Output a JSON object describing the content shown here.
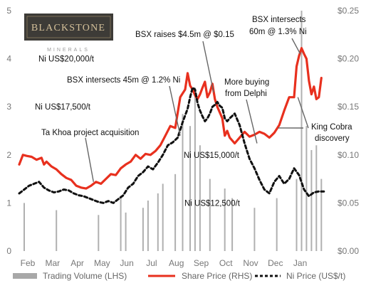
{
  "chart_data": {
    "type": "line",
    "title": "",
    "xlabel": "",
    "ylabel": "",
    "months": [
      "Feb",
      "Mar",
      "Apr",
      "May",
      "Jun",
      "Jul",
      "Aug",
      "Sep",
      "Oct",
      "Nov",
      "Dec",
      "Jan"
    ],
    "y_left": {
      "ylim": [
        0,
        5
      ],
      "ticks": [
        "0",
        "1",
        "2",
        "3",
        "4",
        "5"
      ]
    },
    "y_right": {
      "ylim": [
        0,
        0.25
      ],
      "ticks": [
        "$0.00",
        "$0.05",
        "$0.10",
        "$0.15",
        "$0.20",
        "$0.25"
      ]
    },
    "ni_price_levels": [
      {
        "label": "Ni US$20,000/t",
        "value": 20000
      },
      {
        "label": "Ni US$17,500/t",
        "value": 17500
      },
      {
        "label": "Ni US$15,000/t",
        "value": 15000
      },
      {
        "label": "Ni US$12,500/t",
        "value": 12500
      }
    ],
    "grid": false,
    "legend_position": "bottom",
    "series": [
      {
        "name": "Trading Volume (LHS)",
        "type": "bar",
        "axis": "left",
        "color": "#b0b0b0",
        "x": [
          0.2,
          1.5,
          3.2,
          4.1,
          4.3,
          5.0,
          5.2,
          5.6,
          5.8,
          6.3,
          6.6,
          6.9,
          7.1,
          7.3,
          7.7,
          8.3,
          8.6,
          9.5,
          10.4,
          11.2,
          11.4,
          11.6,
          11.8,
          12.0,
          12.2
        ],
        "values": [
          1.0,
          0.85,
          0.75,
          1.15,
          0.8,
          0.9,
          1.05,
          1.2,
          1.4,
          1.6,
          2.85,
          2.6,
          3.4,
          2.2,
          1.5,
          1.3,
          1.1,
          0.9,
          1.1,
          1.5,
          5.0,
          2.6,
          2.1,
          2.2,
          1.5
        ]
      },
      {
        "name": "Share Price (RHS)",
        "type": "line",
        "axis": "right",
        "color": "#e8301e",
        "x": [
          0,
          0.15,
          0.3,
          0.5,
          0.7,
          0.9,
          1.0,
          1.1,
          1.3,
          1.5,
          1.7,
          1.9,
          2.1,
          2.3,
          2.5,
          2.7,
          2.9,
          3.1,
          3.3,
          3.5,
          3.7,
          3.9,
          4.1,
          4.3,
          4.5,
          4.7,
          4.9,
          5.1,
          5.3,
          5.5,
          5.7,
          5.9,
          6.1,
          6.3,
          6.5,
          6.6,
          6.7,
          6.8,
          6.9,
          7.0,
          7.1,
          7.2,
          7.3,
          7.4,
          7.5,
          7.6,
          7.7,
          7.8,
          7.9,
          8.0,
          8.1,
          8.2,
          8.3,
          8.4,
          8.5,
          8.7,
          8.9,
          9.1,
          9.3,
          9.5,
          9.7,
          9.9,
          10.1,
          10.3,
          10.5,
          10.7,
          10.9,
          11.1,
          11.2,
          11.3,
          11.4,
          11.5,
          11.6,
          11.7,
          11.8,
          11.9,
          12.0,
          12.1,
          12.2
        ],
        "values": [
          0.09,
          0.1,
          0.099,
          0.098,
          0.095,
          0.097,
          0.09,
          0.093,
          0.088,
          0.085,
          0.08,
          0.076,
          0.074,
          0.068,
          0.066,
          0.065,
          0.068,
          0.072,
          0.07,
          0.075,
          0.08,
          0.079,
          0.086,
          0.09,
          0.093,
          0.1,
          0.096,
          0.101,
          0.1,
          0.104,
          0.11,
          0.12,
          0.13,
          0.128,
          0.16,
          0.164,
          0.168,
          0.185,
          0.172,
          0.168,
          0.162,
          0.158,
          0.163,
          0.17,
          0.176,
          0.16,
          0.165,
          0.174,
          0.158,
          0.15,
          0.144,
          0.138,
          0.12,
          0.125,
          0.118,
          0.112,
          0.118,
          0.124,
          0.119,
          0.121,
          0.124,
          0.122,
          0.118,
          0.123,
          0.131,
          0.146,
          0.16,
          0.16,
          0.192,
          0.203,
          0.211,
          0.205,
          0.2,
          0.177,
          0.163,
          0.171,
          0.158,
          0.16,
          0.18
        ]
      },
      {
        "name": "Ni Price (US$/t)",
        "type": "line",
        "axis": "right",
        "color": "#111111",
        "dashed": true,
        "x": [
          0,
          0.2,
          0.4,
          0.6,
          0.8,
          1.0,
          1.2,
          1.4,
          1.6,
          1.8,
          2.0,
          2.2,
          2.4,
          2.6,
          2.8,
          3.0,
          3.2,
          3.4,
          3.6,
          3.8,
          4.0,
          4.2,
          4.4,
          4.6,
          4.8,
          5.0,
          5.2,
          5.4,
          5.6,
          5.8,
          6.0,
          6.2,
          6.4,
          6.6,
          6.8,
          6.9,
          7.0,
          7.1,
          7.2,
          7.3,
          7.4,
          7.5,
          7.6,
          7.7,
          7.8,
          7.9,
          8.0,
          8.1,
          8.2,
          8.3,
          8.4,
          8.5,
          8.7,
          8.9,
          9.1,
          9.3,
          9.5,
          9.7,
          9.9,
          10.1,
          10.3,
          10.5,
          10.7,
          10.9,
          11.1,
          11.3,
          11.5,
          11.7,
          11.9,
          12.1,
          12.3
        ],
        "values": [
          0.06,
          0.064,
          0.068,
          0.07,
          0.072,
          0.066,
          0.063,
          0.061,
          0.062,
          0.064,
          0.063,
          0.06,
          0.058,
          0.057,
          0.055,
          0.053,
          0.051,
          0.05,
          0.052,
          0.05,
          0.054,
          0.058,
          0.066,
          0.07,
          0.078,
          0.082,
          0.088,
          0.085,
          0.092,
          0.1,
          0.11,
          0.113,
          0.118,
          0.134,
          0.148,
          0.16,
          0.17,
          0.168,
          0.154,
          0.146,
          0.14,
          0.135,
          0.138,
          0.143,
          0.15,
          0.152,
          0.155,
          0.151,
          0.149,
          0.138,
          0.135,
          0.138,
          0.143,
          0.131,
          0.112,
          0.096,
          0.086,
          0.074,
          0.064,
          0.06,
          0.072,
          0.078,
          0.07,
          0.075,
          0.086,
          0.079,
          0.064,
          0.057,
          0.061,
          0.062,
          0.062
        ]
      }
    ],
    "annotations": [
      {
        "text": "Ta Khoa project acquisition",
        "x": 3.0,
        "y": 0.072
      },
      {
        "text": "BSX intersects 45m @ 1.2% Ni",
        "x": 6.5,
        "y": 0.12
      },
      {
        "text": "BSX raises $4.5m @ $0.15",
        "x": 7.85,
        "y": 0.165
      },
      {
        "text": "More buying from Delphi",
        "x": 9.6,
        "y": 0.112
      },
      {
        "text": "BSX intersects 60m @ 1.3% Ni",
        "x": 11.35,
        "y": 0.205
      },
      {
        "text": "King Cobra discovery",
        "x": 11.25,
        "y": 0.16
      },
      {
        "text": "",
        "x": 10.45,
        "y": 0.128
      }
    ]
  },
  "logo": {
    "name": "BLACKSTONE",
    "subtitle": "MINERALS"
  },
  "texts": {
    "ann_takhoa": "Ta Khoa project acquisition",
    "ann_bsx45": "BSX intersects 45m @ 1.2% Ni",
    "ann_raises": "BSX raises $4.5m @ $0.15",
    "ann_delphi_1": "More buying",
    "ann_delphi_2": "from Delphi",
    "ann_bsx60_1": "BSX intersects",
    "ann_bsx60_2": "60m @ 1.3% Ni",
    "ann_kingcobra_1": "King Cobra",
    "ann_kingcobra_2": "discovery"
  }
}
